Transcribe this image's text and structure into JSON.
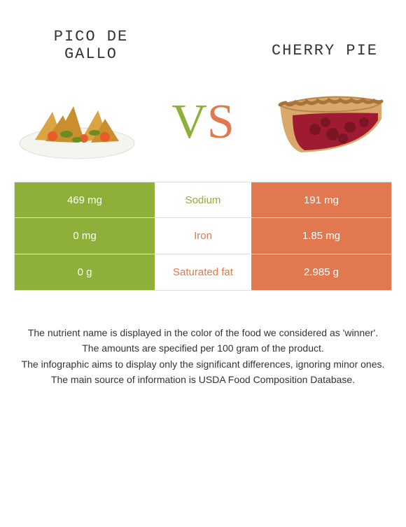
{
  "left": {
    "name": "PICO DE\nGALLO",
    "color": "#8db038"
  },
  "right": {
    "name": "CHERRY PIE",
    "color": "#e2784f"
  },
  "vs": {
    "v_color": "#8db038",
    "s_color": "#e2784f",
    "v": "V",
    "s": "S"
  },
  "rows": [
    {
      "label": "Sodium",
      "left_val": "469 mg",
      "right_val": "191 mg",
      "label_color": "#8db038"
    },
    {
      "label": "Iron",
      "left_val": "0 mg",
      "right_val": "1.85 mg",
      "label_color": "#e2784f"
    },
    {
      "label": "Saturated fat",
      "left_val": "0 g",
      "right_val": "2.985 g",
      "label_color": "#e2784f"
    }
  ],
  "footer": [
    "The nutrient name is displayed in the color of the food we considered as 'winner'.",
    "The amounts are specified per 100 gram of the product.",
    "The infographic aims to display only the significant differences, ignoring minor ones.",
    "The main source of information is USDA Food Composition Database."
  ],
  "svg": {
    "pico_plate": "#f5f5f0",
    "pico_chip1": "#d9a441",
    "pico_chip2": "#c98f2e",
    "pico_tomato": "#e85c2b",
    "pico_green": "#6b8e23",
    "pie_crust": "#d9a86a",
    "pie_crust_edge": "#a9743a",
    "pie_filling": "#9e1b32",
    "pie_cherry": "#7a1526"
  }
}
